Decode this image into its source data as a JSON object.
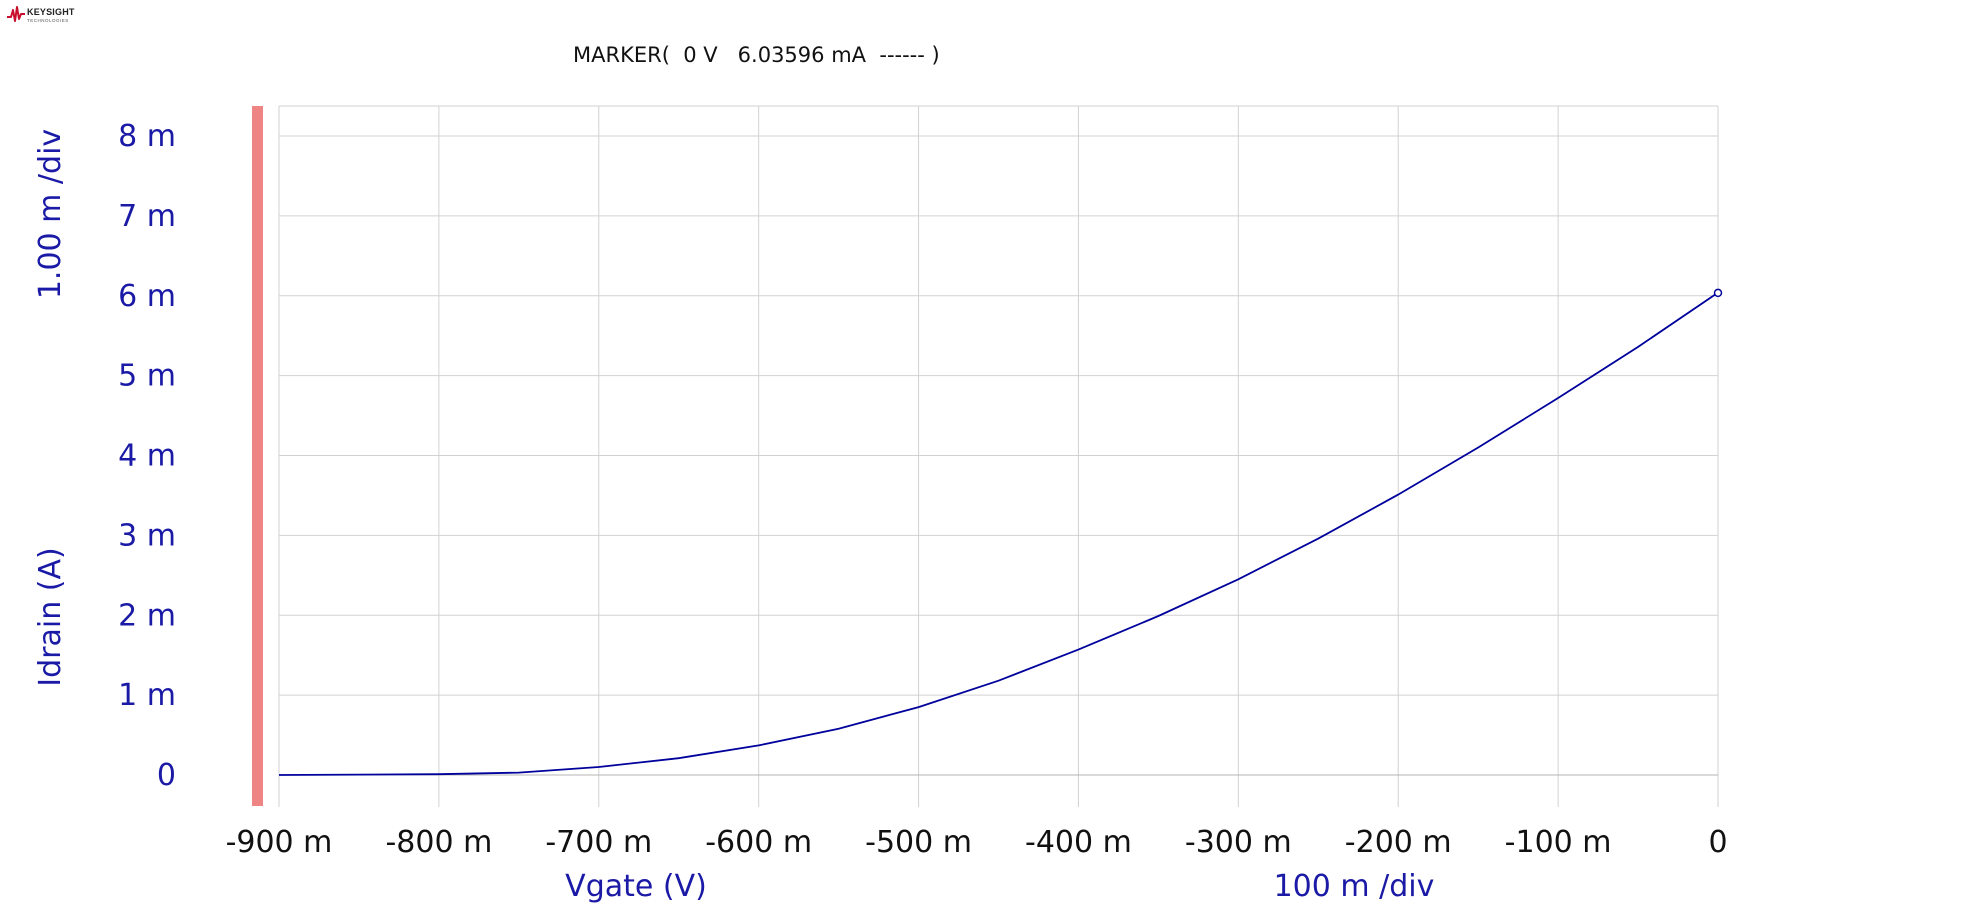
{
  "logo": {
    "brand": "KEYSIGHT",
    "sub": "TECHNOLOGIES",
    "color": "#c8102e"
  },
  "marker_readout": "MARKER(  0 V   6.03596 mA  ------ )",
  "colors": {
    "trace": "#00009c",
    "axis_text": "#1a1aa6",
    "grid": "#d2d2d2",
    "y_axis_bar": "#ef8484"
  },
  "chart_data": {
    "type": "line",
    "xlabel": "Vgate (V)",
    "ylabel": "Idrain (A)",
    "x_div_label": "100 m /div",
    "y_div_label": "1.00 m /div",
    "xlim": [
      -0.9,
      0
    ],
    "ylim": [
      0,
      0.008
    ],
    "x_ticks": [
      -0.9,
      -0.8,
      -0.7,
      -0.6,
      -0.5,
      -0.4,
      -0.3,
      -0.2,
      -0.1,
      0
    ],
    "x_tick_labels": [
      "-900 m",
      "-800 m",
      "-700 m",
      "-600 m",
      "-500 m",
      "-400 m",
      "-300 m",
      "-200 m",
      "-100 m",
      "0"
    ],
    "y_ticks": [
      0,
      0.001,
      0.002,
      0.003,
      0.004,
      0.005,
      0.006,
      0.007,
      0.008
    ],
    "y_tick_labels": [
      "0",
      "1 m",
      "2 m",
      "3 m",
      "4 m",
      "5 m",
      "6 m",
      "7 m",
      "8 m"
    ],
    "grid": true,
    "series": [
      {
        "x": [
          -0.9,
          -0.85,
          -0.8,
          -0.75,
          -0.7,
          -0.65,
          -0.6,
          -0.55,
          -0.5,
          -0.45,
          -0.4,
          -0.35,
          -0.3,
          -0.25,
          -0.2,
          -0.15,
          -0.1,
          -0.05,
          0
        ],
        "y": [
          0.0,
          5e-06,
          1e-05,
          3e-05,
          0.0001,
          0.00021,
          0.00037,
          0.00058,
          0.00085,
          0.00118,
          0.00157,
          0.00199,
          0.00245,
          0.00296,
          0.00351,
          0.0041,
          0.00472,
          0.00536,
          0.00604
        ]
      }
    ],
    "marker": {
      "x": 0,
      "y": 0.00603596
    }
  }
}
